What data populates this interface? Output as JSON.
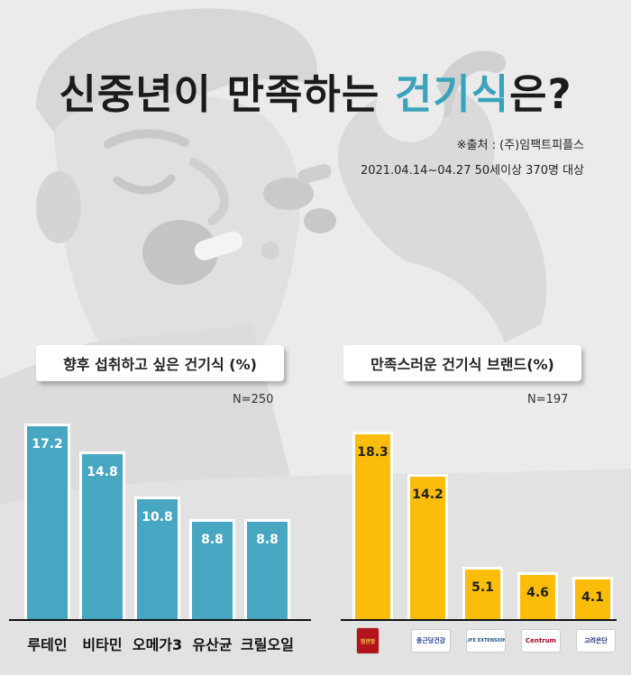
{
  "title": {
    "part1": "신중년이 만족하는 ",
    "accent": "건기식",
    "part2": "은?"
  },
  "source": {
    "line1": "※출처 : (주)임팩트피플스",
    "line2": "2021.04.14~04.27 50세이상 370명 대상"
  },
  "colors": {
    "accent": "#3aa3bb",
    "blue_bar": "#47a7c2",
    "yellow_bar": "#fbbd09"
  },
  "chart_data": [
    {
      "type": "bar",
      "title": "향후 섭취하고 싶은 건기식 (%)",
      "n_label": "N=250",
      "categories": [
        "루테인",
        "비타민",
        "오메가3",
        "유산균",
        "크릴오일"
      ],
      "values": [
        17.2,
        14.8,
        10.8,
        8.8,
        8.8
      ],
      "value_labels": [
        "17.2",
        "14.8",
        "10.8",
        "8.8",
        "8.8"
      ],
      "ylim": [
        0,
        18.5
      ]
    },
    {
      "type": "bar",
      "title": "만족스러운 건기식 브랜드(%)",
      "n_label": "N=197",
      "categories": [
        "정관장",
        "종근당건강",
        "LIFE EXTENSION",
        "Centrum",
        "고려은단"
      ],
      "category_icons": [
        "jeonggwanjang-logo",
        "chongkundang-logo",
        "life-extension-logo",
        "centrum-logo",
        "korea-eundan-logo"
      ],
      "values": [
        18.3,
        14.2,
        5.1,
        4.6,
        4.1
      ],
      "value_labels": [
        "18.3",
        "14.2",
        "5.1",
        "4.6",
        "4.1"
      ],
      "ylim": [
        0,
        20.5
      ]
    }
  ]
}
